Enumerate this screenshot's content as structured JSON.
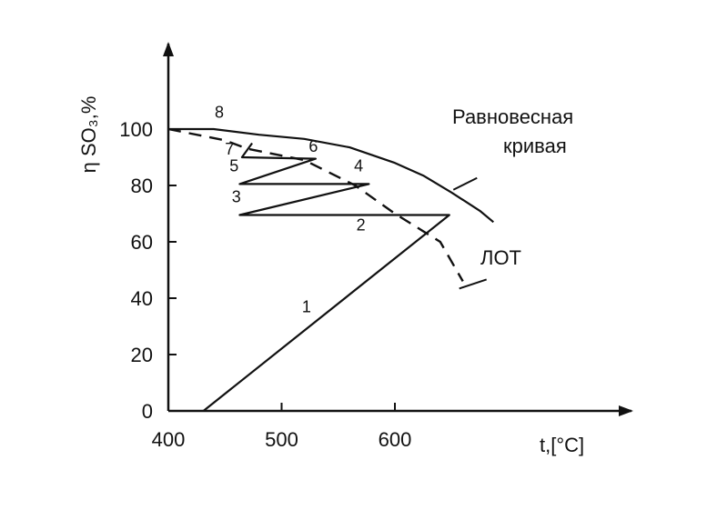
{
  "chart_data": {
    "type": "line",
    "title": "",
    "xlabel": "t,[°C]",
    "ylabel": "η SO₃,%",
    "xlim": [
      400,
      700
    ],
    "ylim": [
      0,
      110
    ],
    "grid": false,
    "x_ticks": [
      400,
      500,
      600
    ],
    "y_ticks": [
      0,
      20,
      40,
      60,
      80,
      100
    ],
    "series": [
      {
        "id": "equilibrium",
        "name": "Равновесная кривая",
        "style": "solid",
        "x": [
          400,
          440,
          480,
          520,
          560,
          600,
          625,
          650,
          675,
          687
        ],
        "y": [
          100,
          100,
          98,
          96.5,
          93.5,
          88,
          83.5,
          77.5,
          71,
          67
        ]
      },
      {
        "id": "lot",
        "name": "ЛОТ",
        "style": "dashed",
        "x": [
          400,
          450,
          470,
          520,
          565,
          600,
          640,
          660
        ],
        "y": [
          100,
          96,
          93,
          89,
          80,
          70,
          60,
          46
        ]
      },
      {
        "id": "process",
        "name": "",
        "style": "solid",
        "x": [
          431,
          648,
          463,
          577,
          463,
          530,
          465,
          474
        ],
        "y": [
          0,
          69.5,
          69.5,
          80.5,
          80.5,
          89.5,
          90,
          95
        ]
      }
    ],
    "point_labels": [
      {
        "text": "1",
        "x": 522,
        "y": 35
      },
      {
        "text": "2",
        "x": 570,
        "y": 64
      },
      {
        "text": "3",
        "x": 460,
        "y": 74
      },
      {
        "text": "4",
        "x": 568,
        "y": 85
      },
      {
        "text": "5",
        "x": 458,
        "y": 85
      },
      {
        "text": "6",
        "x": 528,
        "y": 92
      },
      {
        "text": "7",
        "x": 454,
        "y": 91
      },
      {
        "text": "8",
        "x": 445,
        "y": 104
      }
    ],
    "annotations": {
      "equilibrium_line1": "Равновесная",
      "equilibrium_line2": "кривая",
      "lot": "ЛОТ"
    }
  }
}
